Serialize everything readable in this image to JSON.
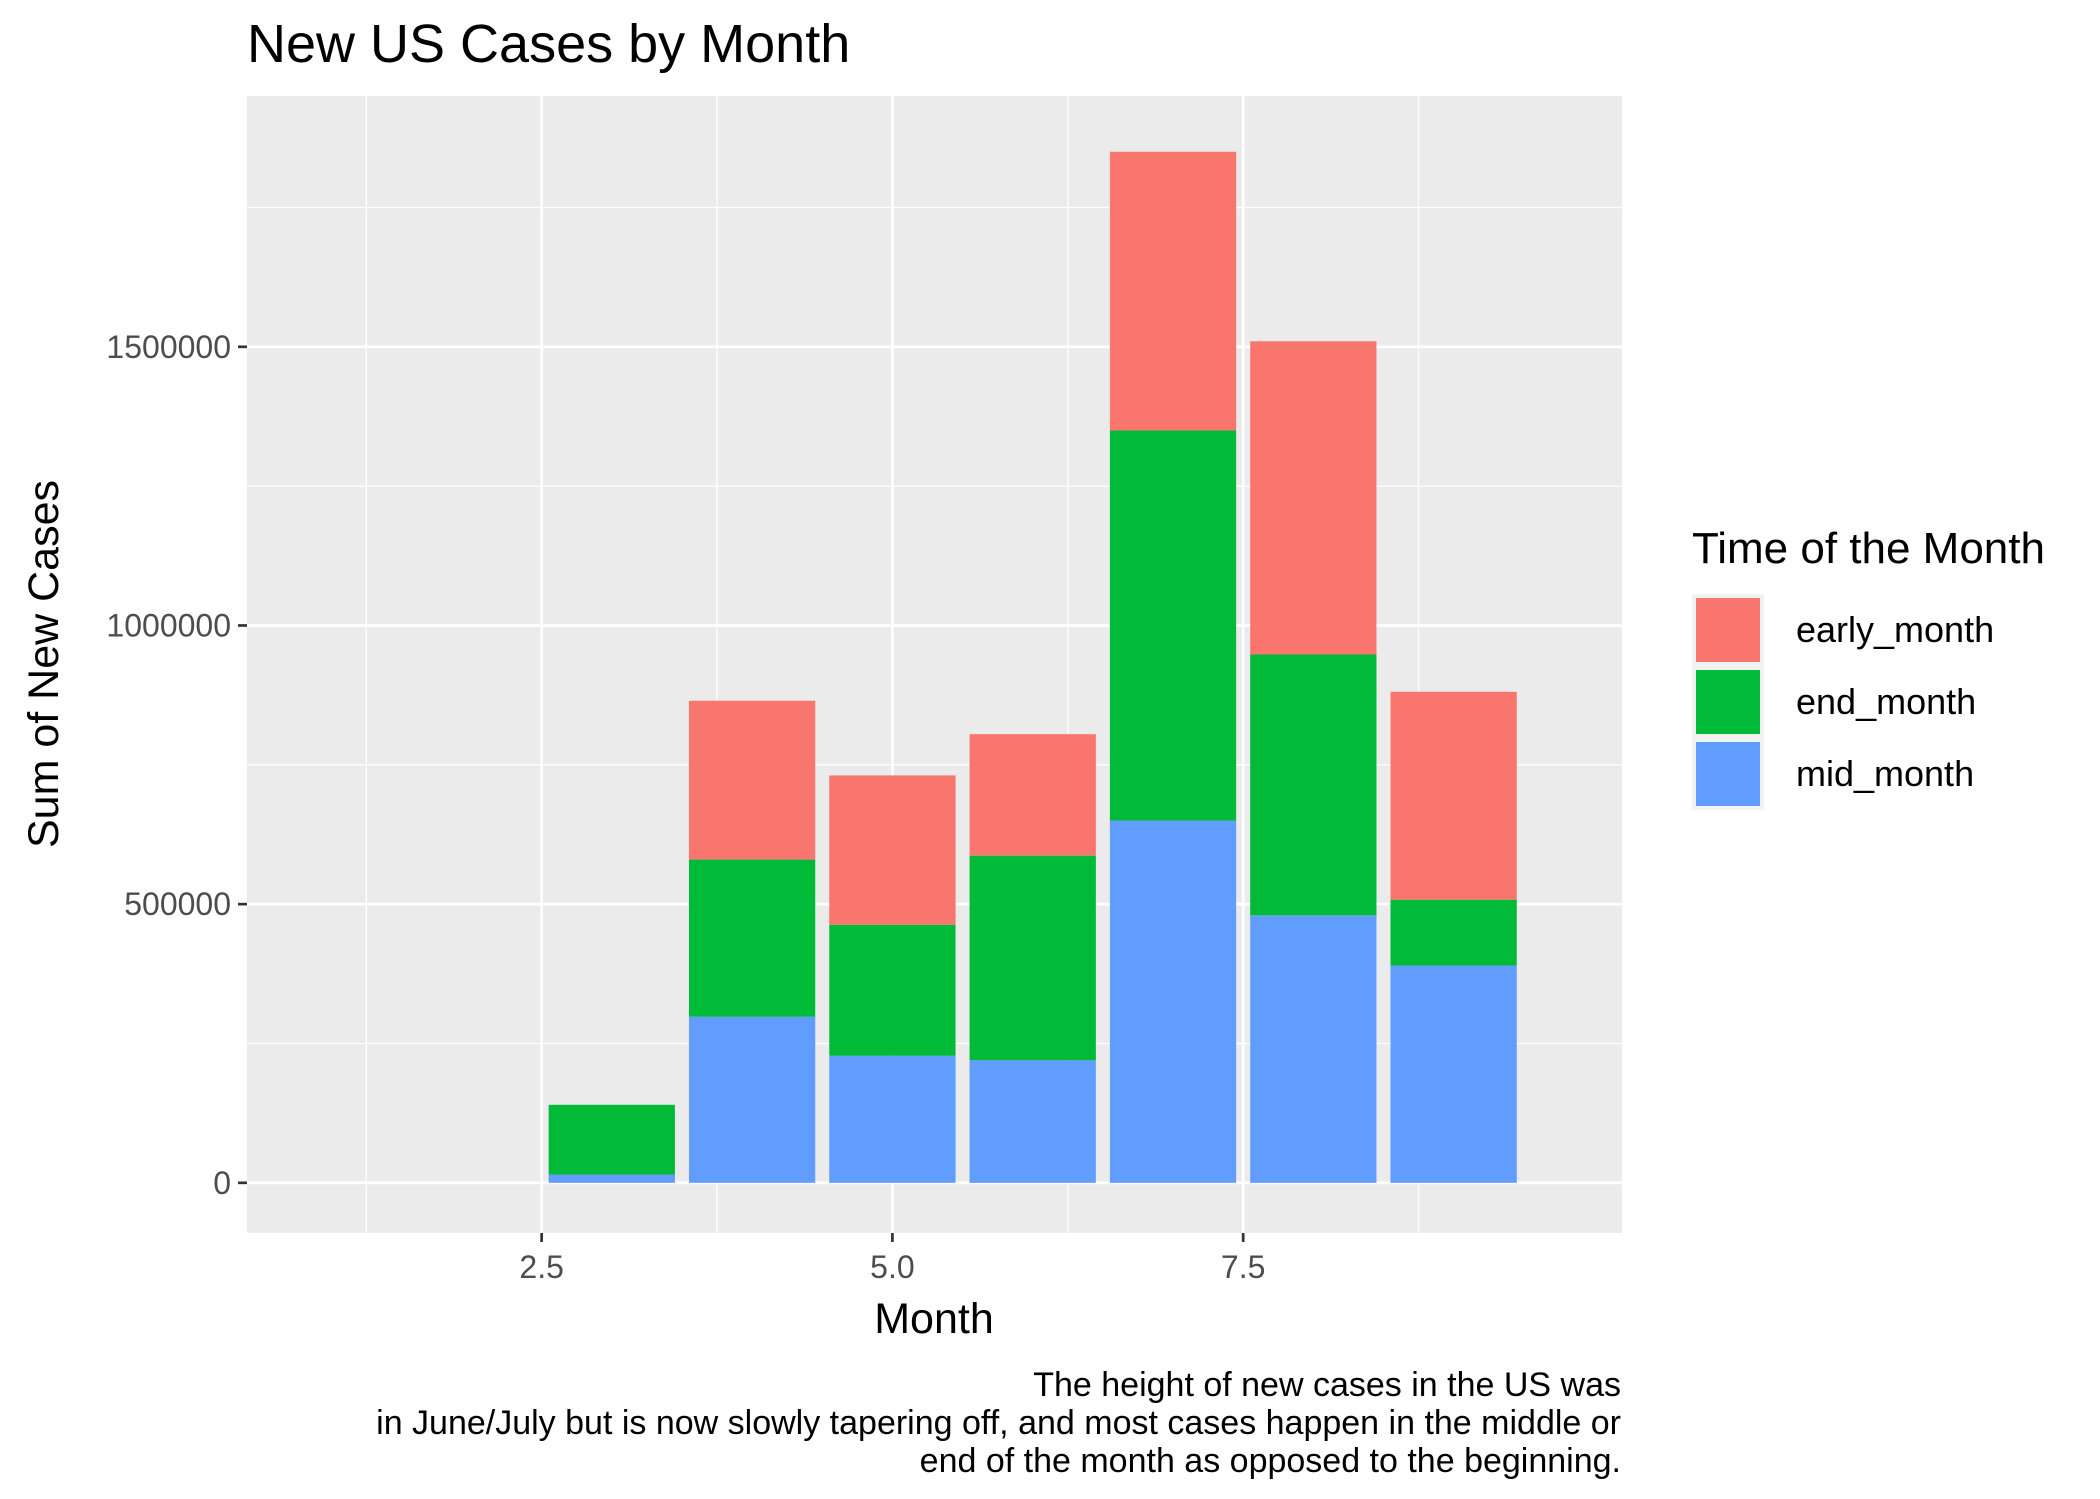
{
  "chart_data": {
    "type": "bar",
    "stacked": true,
    "title": "New US Cases by Month",
    "xlabel": "Month",
    "ylabel": "Sum of New Cases",
    "x": [
      3,
      4,
      5,
      6,
      7,
      8,
      9
    ],
    "xticks": [
      "2.5",
      "5.0",
      "7.5"
    ],
    "xtick_values": [
      2.5,
      5.0,
      7.5
    ],
    "yticks": [
      "0",
      "500000",
      "1000000",
      "1500000"
    ],
    "ytick_values": [
      0,
      500000,
      1000000,
      1500000
    ],
    "xlim": [
      0.4,
      10.2
    ],
    "ylim": [
      -90000,
      1950000
    ],
    "grid": true,
    "series": [
      {
        "name": "mid_month",
        "color": "#619CFF",
        "values": [
          15000,
          298000,
          228000,
          220000,
          650000,
          480000,
          390000
        ]
      },
      {
        "name": "end_month",
        "color": "#00BA38",
        "values": [
          125000,
          282000,
          235000,
          367000,
          700000,
          468000,
          118000
        ]
      },
      {
        "name": "early_month",
        "color": "#F8766D",
        "values": [
          0,
          285000,
          268000,
          218000,
          500000,
          562000,
          373000
        ]
      }
    ],
    "legend": {
      "title": "Time of the Month",
      "position": "right",
      "order": [
        "early_month",
        "end_month",
        "mid_month"
      ]
    },
    "caption": [
      "The height of new cases in the US was",
      "in June/July but is now slowly tapering off, and most cases happen in the middle or",
      "end of the month as opposed to the beginning."
    ]
  }
}
